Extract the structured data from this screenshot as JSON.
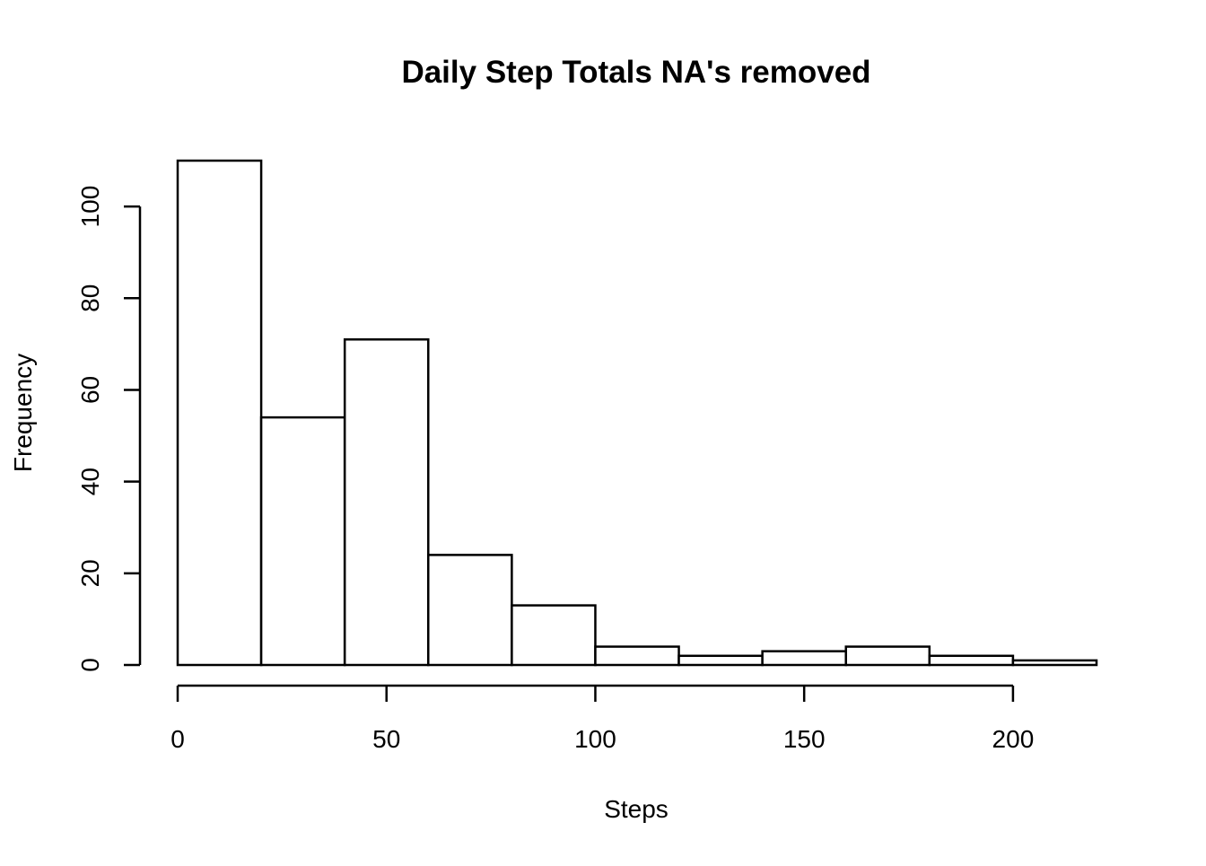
{
  "chart_data": {
    "type": "bar",
    "title": "Daily Step Totals NA's removed",
    "xlabel": "Steps",
    "ylabel": "Frequency",
    "bins": [
      {
        "start": 0,
        "end": 20,
        "count": 110
      },
      {
        "start": 20,
        "end": 40,
        "count": 54
      },
      {
        "start": 40,
        "end": 60,
        "count": 71
      },
      {
        "start": 60,
        "end": 80,
        "count": 24
      },
      {
        "start": 80,
        "end": 100,
        "count": 13
      },
      {
        "start": 100,
        "end": 120,
        "count": 4
      },
      {
        "start": 120,
        "end": 140,
        "count": 2
      },
      {
        "start": 140,
        "end": 160,
        "count": 3
      },
      {
        "start": 160,
        "end": 180,
        "count": 4
      },
      {
        "start": 180,
        "end": 200,
        "count": 2
      },
      {
        "start": 200,
        "end": 220,
        "count": 1
      }
    ],
    "xlim": [
      0,
      220
    ],
    "ylim": [
      0,
      110
    ],
    "xticks": [
      0,
      50,
      100,
      150,
      200
    ],
    "xtick_labels": [
      "0",
      "50",
      "100",
      "150",
      "200"
    ],
    "yticks": [
      0,
      20,
      40,
      60,
      80,
      100
    ],
    "ytick_labels": [
      "0",
      "20",
      "40",
      "60",
      "80",
      "100"
    ],
    "grid": false,
    "bar_fill": "#ffffff",
    "bar_stroke": "#000000"
  }
}
